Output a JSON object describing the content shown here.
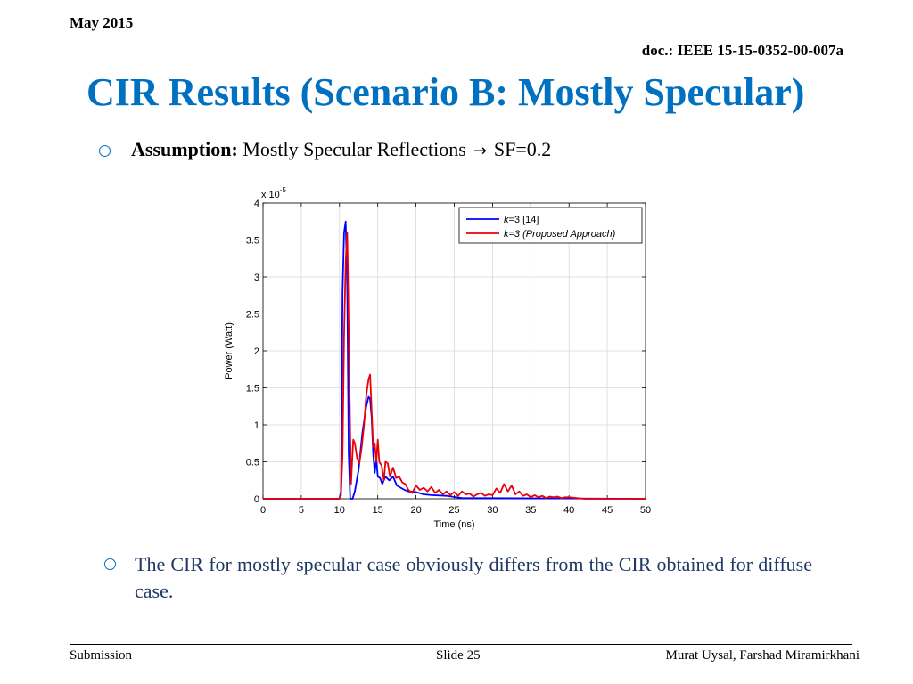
{
  "header": {
    "date": "May 2015",
    "doc": "doc.: IEEE 15-15-0352-00-007a"
  },
  "title": "CIR Results (Scenario B: Mostly Specular)",
  "bullet1": {
    "label": "Assumption:",
    "text": "Mostly Specular Reflections",
    "arrow": "→",
    "value": "SF=0.2"
  },
  "bullet2": {
    "text": "The CIR for mostly specular case obviously differs from the CIR obtained for diffuse case."
  },
  "footer": {
    "left": "Submission",
    "center": "Slide 25",
    "right": "Murat Uysal, Farshad Miramirkhani"
  },
  "colors": {
    "title": "#0070c0",
    "bullet2_text": "#1f3864",
    "series_blue": "#0000ff",
    "series_red": "#e8000b"
  },
  "chart_data": {
    "type": "line",
    "xlabel": "Time (ns)",
    "ylabel": "Power (Watt)",
    "y_multiplier": "x 10-5",
    "xlim": [
      0,
      50
    ],
    "ylim": [
      0,
      4
    ],
    "xticks": [
      0,
      5,
      10,
      15,
      20,
      25,
      30,
      35,
      40,
      45,
      50
    ],
    "yticks": [
      0,
      0.5,
      1,
      1.5,
      2,
      2.5,
      3,
      3.5,
      4
    ],
    "grid": true,
    "legend_position": "top-right",
    "series": [
      {
        "name": "k=3 [14]",
        "legend_italic": "k",
        "legend_rest": "=3 [14]",
        "color": "#0000ff",
        "x": [
          0,
          10.0,
          10.2,
          10.4,
          10.6,
          10.8,
          11.0,
          11.2,
          11.4,
          11.7,
          12.0,
          12.5,
          13.0,
          13.5,
          13.8,
          14.0,
          14.2,
          14.4,
          14.6,
          14.8,
          15.0,
          15.3,
          15.6,
          16.0,
          16.5,
          17.0,
          17.5,
          18.0,
          18.5,
          19.0,
          20.0,
          21.0,
          22.0,
          24.0,
          26.0,
          50
        ],
        "y": [
          0,
          0,
          0.1,
          2.8,
          3.6,
          3.75,
          2.9,
          0.6,
          0.0,
          0.0,
          0.1,
          0.4,
          0.9,
          1.25,
          1.38,
          1.35,
          1.1,
          0.6,
          0.35,
          0.55,
          0.3,
          0.28,
          0.2,
          0.3,
          0.25,
          0.3,
          0.18,
          0.15,
          0.12,
          0.1,
          0.09,
          0.06,
          0.05,
          0.04,
          0.01,
          0.0
        ]
      },
      {
        "name": "k=3 (Proposed Approach)",
        "legend_italic": "k",
        "legend_rest": "=3 (Proposed Approach)",
        "color": "#e8000b",
        "x": [
          0,
          10.0,
          10.2,
          10.4,
          10.6,
          10.8,
          11.0,
          11.1,
          11.3,
          11.5,
          11.8,
          12.0,
          12.3,
          12.6,
          12.9,
          13.2,
          13.5,
          13.8,
          14.0,
          14.2,
          14.4,
          14.6,
          14.8,
          15.0,
          15.2,
          15.5,
          15.8,
          16.0,
          16.3,
          16.6,
          17.0,
          17.4,
          17.8,
          18.2,
          18.6,
          19.0,
          19.5,
          20.0,
          20.5,
          21.0,
          21.5,
          22.0,
          22.5,
          23.0,
          23.5,
          24.0,
          24.5,
          25.0,
          25.5,
          26.0,
          26.5,
          27.0,
          27.5,
          28.0,
          28.5,
          29.0,
          29.5,
          30.0,
          30.5,
          31.0,
          31.5,
          32.0,
          32.5,
          33.0,
          33.5,
          34.0,
          34.5,
          35.0,
          35.5,
          36.0,
          36.5,
          37.0,
          37.5,
          38.0,
          38.5,
          39.0,
          39.5,
          40.0,
          41.0,
          42.0,
          50
        ],
        "y": [
          0,
          0,
          0.05,
          0.6,
          2.2,
          3.2,
          3.6,
          3.1,
          1.5,
          0.2,
          0.8,
          0.75,
          0.55,
          0.48,
          0.7,
          1.0,
          1.4,
          1.62,
          1.68,
          1.2,
          0.7,
          0.75,
          0.5,
          0.8,
          0.5,
          0.45,
          0.25,
          0.5,
          0.48,
          0.3,
          0.42,
          0.28,
          0.3,
          0.22,
          0.2,
          0.12,
          0.08,
          0.18,
          0.12,
          0.15,
          0.1,
          0.16,
          0.08,
          0.12,
          0.06,
          0.1,
          0.05,
          0.09,
          0.04,
          0.1,
          0.06,
          0.07,
          0.03,
          0.06,
          0.08,
          0.04,
          0.06,
          0.05,
          0.14,
          0.08,
          0.2,
          0.1,
          0.18,
          0.06,
          0.1,
          0.04,
          0.06,
          0.02,
          0.05,
          0.02,
          0.04,
          0.01,
          0.03,
          0.02,
          0.03,
          0.01,
          0.02,
          0.02,
          0.01,
          0.0,
          0.0
        ]
      }
    ]
  }
}
